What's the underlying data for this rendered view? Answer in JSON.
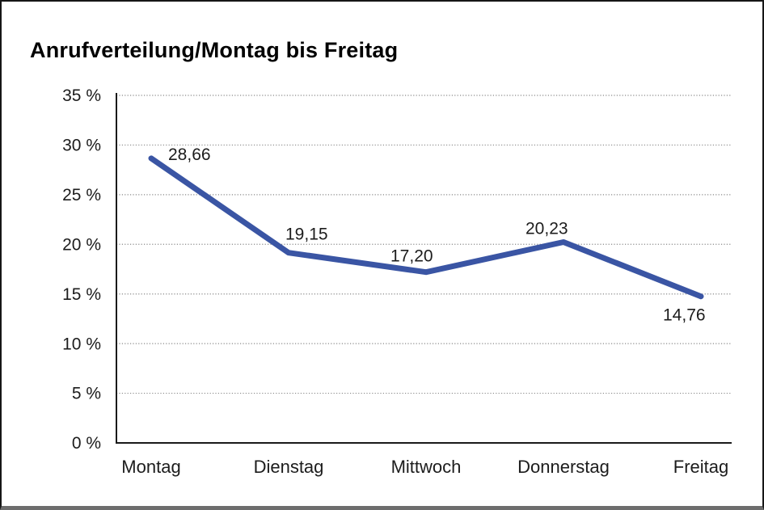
{
  "title": "Anrufverteilung/Montag bis Freitag",
  "colors": {
    "line": "#3A55A4",
    "grid": "#8a8a8a",
    "axis": "#1a1a1a",
    "text": "#1c1c1c",
    "background": "#ffffff",
    "frame_bottom": "#6d6d6d"
  },
  "chart_data": {
    "type": "line",
    "title": "Anrufverteilung/Montag bis Freitag",
    "categories": [
      "Montag",
      "Dienstag",
      "Mittwoch",
      "Donnerstag",
      "Freitag"
    ],
    "values": [
      28.66,
      19.15,
      17.2,
      20.23,
      14.76
    ],
    "value_labels": [
      "28,66",
      "19,15",
      "17,20",
      "20,23",
      "14,76"
    ],
    "y_tick_labels": [
      "0 %",
      "5 %",
      "10 %",
      "15 %",
      "20 %",
      "25 %",
      "30 %",
      "35 %"
    ],
    "ylim": [
      0,
      35
    ],
    "y_step": 5,
    "xlabel": "",
    "ylabel": "",
    "grid": "horizontal-dotted",
    "legend": "none"
  }
}
